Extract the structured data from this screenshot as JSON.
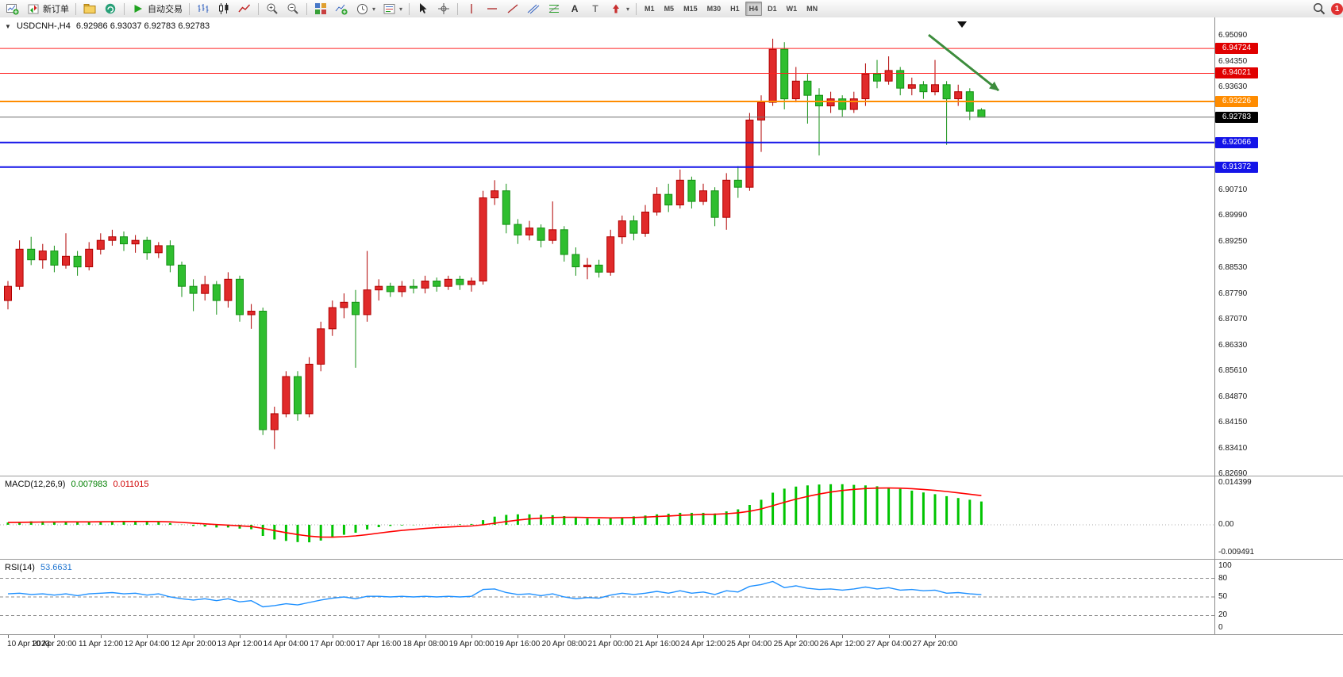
{
  "glyphs": {
    "collapse": "▼",
    "dropdown": "▾",
    "text_tool": "A",
    "label_tool": "T"
  },
  "toolbar": {
    "new_order": "新订单",
    "autotrade": "自动交易",
    "timeframes": [
      "M1",
      "M5",
      "M15",
      "M30",
      "H1",
      "H4",
      "D1",
      "W1",
      "MN"
    ],
    "active_timeframe": "H4",
    "notification_count": "1"
  },
  "header": {
    "symbol": "USDCNH-,H4",
    "ohlc": "6.92986 6.93037 6.92783 6.92783"
  },
  "chart_data": [
    {
      "type": "candlestick",
      "title": "USDCNH-,H4",
      "up_color": "#e02a2a",
      "up_border": "#b00000",
      "down_color": "#2fbe2f",
      "down_border": "#159015",
      "ylim": [
        6.8265,
        6.956
      ],
      "y_ticks": [
        "6.95090",
        "6.94350",
        "6.93630",
        "6.90710",
        "6.89990",
        "6.89250",
        "6.88530",
        "6.87790",
        "6.87070",
        "6.86330",
        "6.85610",
        "6.84870",
        "6.84150",
        "6.83410",
        "6.82690"
      ],
      "hlines": [
        {
          "label": "6.94724",
          "line_color": "#ff2020",
          "badge_color": "#e00000",
          "width": 1
        },
        {
          "label": "6.94021",
          "line_color": "#ff2020",
          "badge_color": "#e00000",
          "width": 1
        },
        {
          "label": "6.93226",
          "line_color": "#ff8c00",
          "badge_color": "#ff8c00",
          "width": 2
        },
        {
          "label": "6.92783",
          "line_color": "#6e6e6e",
          "badge_color": "#000000",
          "width": 1
        },
        {
          "label": "6.92066",
          "line_color": "#1414e8",
          "badge_color": "#1414e8",
          "width": 2
        },
        {
          "label": "6.91372",
          "line_color": "#1414e8",
          "badge_color": "#1414e8",
          "width": 2
        }
      ],
      "annotation": {
        "type": "arrow",
        "color": "#3c8c3c"
      },
      "x_labels": [
        "10 Apr 2023",
        "10 Apr 20:00",
        "11 Apr 12:00",
        "12 Apr 04:00",
        "12 Apr 20:00",
        "13 Apr 12:00",
        "14 Apr 04:00",
        "17 Apr 00:00",
        "17 Apr 16:00",
        "18 Apr 08:00",
        "19 Apr 00:00",
        "19 Apr 16:00",
        "20 Apr 08:00",
        "21 Apr 00:00",
        "21 Apr 16:00",
        "24 Apr 12:00",
        "25 Apr 04:00",
        "25 Apr 20:00",
        "26 Apr 12:00",
        "27 Apr 04:00",
        "27 Apr 20:00"
      ],
      "candles": [
        [
          6.876,
          6.8815,
          6.8735,
          6.88
        ],
        [
          6.88,
          6.893,
          6.879,
          6.8905
        ],
        [
          6.8905,
          6.894,
          6.886,
          6.8875
        ],
        [
          6.8875,
          6.892,
          6.885,
          6.89
        ],
        [
          6.89,
          6.8915,
          6.884,
          6.886
        ],
        [
          6.886,
          6.895,
          6.885,
          6.8885
        ],
        [
          6.8885,
          6.89,
          6.883,
          6.8855
        ],
        [
          6.8855,
          6.8925,
          6.8845,
          6.8905
        ],
        [
          6.8905,
          6.895,
          6.889,
          6.893
        ],
        [
          6.893,
          6.896,
          6.8915,
          6.894
        ],
        [
          6.894,
          6.8955,
          6.89,
          6.892
        ],
        [
          6.892,
          6.8945,
          6.8895,
          6.893
        ],
        [
          6.893,
          6.894,
          6.8875,
          6.8895
        ],
        [
          6.8895,
          6.8925,
          6.888,
          6.8915
        ],
        [
          6.8915,
          6.893,
          6.884,
          6.886
        ],
        [
          6.886,
          6.887,
          6.877,
          6.88
        ],
        [
          6.88,
          6.882,
          6.873,
          6.878
        ],
        [
          6.878,
          6.883,
          6.876,
          6.8805
        ],
        [
          6.8805,
          6.8815,
          6.872,
          6.876
        ],
        [
          6.876,
          6.884,
          6.874,
          6.882
        ],
        [
          6.882,
          6.883,
          6.87,
          6.872
        ],
        [
          6.872,
          6.875,
          6.868,
          6.873
        ],
        [
          6.873,
          6.874,
          6.838,
          6.8395
        ],
        [
          6.8395,
          6.846,
          6.834,
          6.844
        ],
        [
          6.844,
          6.856,
          6.843,
          6.8545
        ],
        [
          6.8545,
          6.856,
          6.842,
          6.844
        ],
        [
          6.844,
          6.86,
          6.843,
          6.858
        ],
        [
          6.858,
          6.87,
          6.856,
          6.868
        ],
        [
          6.868,
          6.876,
          6.866,
          6.874
        ],
        [
          6.874,
          6.878,
          6.871,
          6.8755
        ],
        [
          6.8755,
          6.879,
          6.857,
          6.872
        ],
        [
          6.872,
          6.89,
          6.87,
          6.879
        ],
        [
          6.879,
          6.882,
          6.876,
          6.88
        ],
        [
          6.88,
          6.881,
          6.877,
          6.8785
        ],
        [
          6.8785,
          6.8815,
          6.877,
          6.88
        ],
        [
          6.88,
          6.882,
          6.878,
          6.8795
        ],
        [
          6.8795,
          6.883,
          6.878,
          6.8815
        ],
        [
          6.8815,
          6.8825,
          6.8785,
          6.88
        ],
        [
          6.88,
          6.883,
          6.879,
          6.882
        ],
        [
          6.882,
          6.883,
          6.879,
          6.8805
        ],
        [
          6.8805,
          6.8825,
          6.8785,
          6.8815
        ],
        [
          6.8815,
          6.907,
          6.8805,
          6.905
        ],
        [
          6.905,
          6.91,
          6.903,
          6.907
        ],
        [
          6.907,
          6.909,
          6.895,
          6.8975
        ],
        [
          6.8975,
          6.899,
          6.892,
          6.8945
        ],
        [
          6.8945,
          6.8985,
          6.893,
          6.8965
        ],
        [
          6.8965,
          6.8975,
          6.891,
          6.893
        ],
        [
          6.893,
          6.904,
          6.892,
          6.896
        ],
        [
          6.896,
          6.897,
          6.887,
          6.889
        ],
        [
          6.889,
          6.891,
          6.883,
          6.8855
        ],
        [
          6.8855,
          6.888,
          6.882,
          6.886
        ],
        [
          6.886,
          6.8875,
          6.8825,
          6.884
        ],
        [
          6.884,
          6.896,
          6.883,
          6.894
        ],
        [
          6.894,
          6.9,
          6.892,
          6.8985
        ],
        [
          6.8985,
          6.9,
          6.893,
          6.895
        ],
        [
          6.895,
          6.903,
          6.894,
          6.901
        ],
        [
          6.901,
          6.908,
          6.9,
          6.906
        ],
        [
          6.906,
          6.909,
          6.901,
          6.903
        ],
        [
          6.903,
          6.913,
          6.902,
          6.91
        ],
        [
          6.91,
          6.911,
          6.902,
          6.904
        ],
        [
          6.904,
          6.909,
          6.903,
          6.907
        ],
        [
          6.907,
          6.908,
          6.897,
          6.8995
        ],
        [
          6.8995,
          6.912,
          6.896,
          6.91
        ],
        [
          6.91,
          6.914,
          6.905,
          6.908
        ],
        [
          6.908,
          6.929,
          6.907,
          6.927
        ],
        [
          6.927,
          6.934,
          6.918,
          6.932
        ],
        [
          6.932,
          6.95,
          6.931,
          6.947
        ],
        [
          6.947,
          6.949,
          6.93,
          6.933
        ],
        [
          6.933,
          6.942,
          6.932,
          6.938
        ],
        [
          6.938,
          6.94,
          6.926,
          6.934
        ],
        [
          6.934,
          6.936,
          6.917,
          6.931
        ],
        [
          6.931,
          6.935,
          6.929,
          6.933
        ],
        [
          6.933,
          6.934,
          6.928,
          6.93
        ],
        [
          6.93,
          6.935,
          6.929,
          6.933
        ],
        [
          6.933,
          6.943,
          6.931,
          6.94
        ],
        [
          6.94,
          6.944,
          6.936,
          6.938
        ],
        [
          6.938,
          6.945,
          6.937,
          6.941
        ],
        [
          6.941,
          6.942,
          6.934,
          6.936
        ],
        [
          6.936,
          6.939,
          6.934,
          6.937
        ],
        [
          6.937,
          6.938,
          6.933,
          6.935
        ],
        [
          6.935,
          6.944,
          6.934,
          6.937
        ],
        [
          6.937,
          6.938,
          6.92,
          6.933
        ],
        [
          6.933,
          6.937,
          6.931,
          6.935
        ],
        [
          6.935,
          6.936,
          6.927,
          6.9295
        ],
        [
          6.92986,
          6.93037,
          6.92783,
          6.92783
        ]
      ]
    },
    {
      "type": "bar",
      "name": "MACD",
      "label": "MACD(12,26,9)",
      "main_value": "0.007983",
      "signal_value": "0.011015",
      "bar_color": "#00c400",
      "signal_color": "#ff0000",
      "ylim": [
        -0.009491,
        0.014399
      ],
      "y_ticks": [
        "0.014399",
        "0.00",
        "-0.009491"
      ],
      "values": [
        0.0008,
        0.001,
        0.0012,
        0.0012,
        0.0011,
        0.0011,
        0.001,
        0.001,
        0.0012,
        0.0013,
        0.0013,
        0.0012,
        0.0011,
        0.001,
        0.0006,
        0.0001,
        -0.0004,
        -0.0006,
        -0.0009,
        -0.0009,
        -0.0013,
        -0.0015,
        -0.0038,
        -0.005,
        -0.0055,
        -0.0059,
        -0.006,
        -0.0054,
        -0.0044,
        -0.0034,
        -0.0027,
        -0.0016,
        -0.0008,
        -0.0004,
        -0.0002,
        -0.0001,
        0.0,
        0.0001,
        0.0001,
        0.0002,
        0.0003,
        0.0016,
        0.0028,
        0.0034,
        0.0036,
        0.0036,
        0.0034,
        0.0033,
        0.003,
        0.0026,
        0.0022,
        0.002,
        0.0022,
        0.0026,
        0.0029,
        0.0032,
        0.0036,
        0.0038,
        0.0041,
        0.0041,
        0.0041,
        0.0039,
        0.0046,
        0.0053,
        0.0068,
        0.0086,
        0.011,
        0.0124,
        0.0131,
        0.0135,
        0.0138,
        0.0139,
        0.0139,
        0.0137,
        0.0135,
        0.0132,
        0.0128,
        0.0123,
        0.0117,
        0.0111,
        0.0105,
        0.0098,
        0.0092,
        0.0086,
        0.008
      ]
    },
    {
      "type": "line",
      "name": "RSI",
      "label": "RSI(14)",
      "value": "53.6631",
      "line_color": "#1e90ff",
      "levels": [
        80,
        50,
        20
      ],
      "ylim": [
        0,
        100
      ],
      "y_ticks": [
        "100",
        "80",
        "50",
        "20",
        "0"
      ],
      "values": [
        55,
        56,
        54,
        55,
        53,
        55,
        52,
        55,
        56,
        57,
        55,
        56,
        53,
        55,
        50,
        47,
        45,
        47,
        44,
        47,
        42,
        44,
        34,
        36,
        39,
        37,
        41,
        45,
        48,
        50,
        47,
        51,
        51,
        50,
        51,
        50,
        51,
        50,
        51,
        50,
        51,
        62,
        63,
        57,
        54,
        55,
        52,
        55,
        50,
        47,
        49,
        48,
        53,
        56,
        54,
        56,
        59,
        56,
        60,
        56,
        58,
        54,
        60,
        58,
        67,
        70,
        75,
        65,
        68,
        64,
        62,
        63,
        61,
        63,
        66,
        63,
        65,
        61,
        62,
        60,
        61,
        56,
        57,
        55,
        53.66
      ]
    }
  ]
}
